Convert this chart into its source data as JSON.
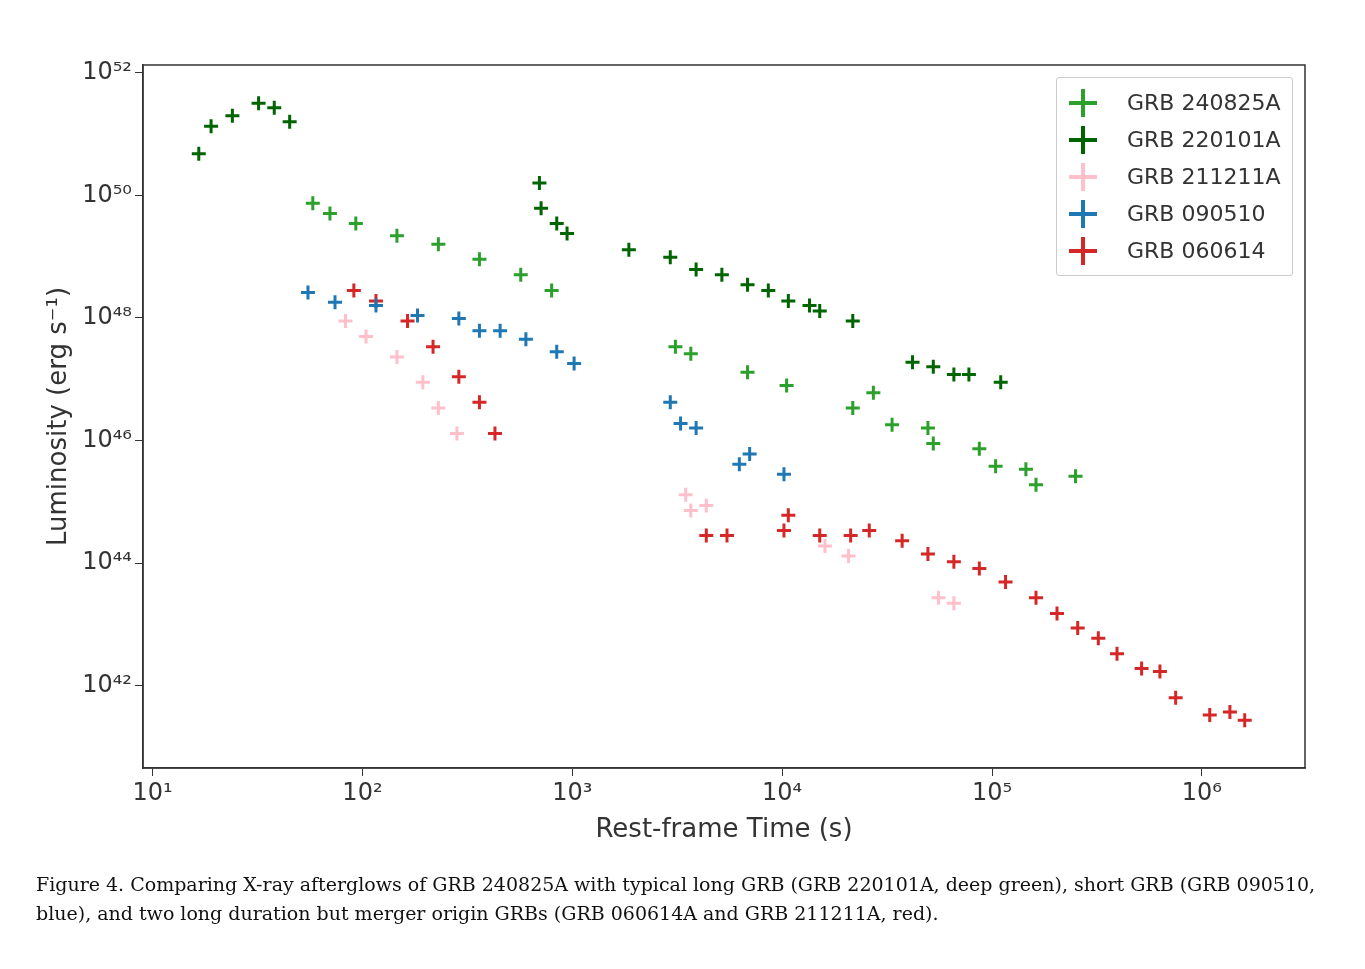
{
  "chart_data": {
    "type": "scatter",
    "xlabel": "Rest-frame Time (s)",
    "ylabel": "Luminosity (erg s⁻¹)",
    "log": "xy",
    "grid": false,
    "legend": "top right",
    "marker": "cross",
    "xlim": [
      9,
      3100000
    ],
    "ylim": [
      4.5e+40,
      1.35e+52
    ],
    "xticks": [
      {
        "value": 10,
        "label": "10¹"
      },
      {
        "value": 100,
        "label": "10²"
      },
      {
        "value": 1000,
        "label": "10³"
      },
      {
        "value": 10000,
        "label": "10⁴"
      },
      {
        "value": 100000,
        "label": "10⁵"
      },
      {
        "value": 1000000,
        "label": "10⁶"
      }
    ],
    "yticks": [
      {
        "value": 1e+42,
        "label": "10⁴²"
      },
      {
        "value": 1e+44,
        "label": "10⁴⁴"
      },
      {
        "value": 1e+46,
        "label": "10⁴⁶"
      },
      {
        "value": 1e+48,
        "label": "10⁴⁸"
      },
      {
        "value": 1e+50,
        "label": "10⁵⁰"
      },
      {
        "value": 1e+52,
        "label": "10⁵²"
      }
    ],
    "series": [
      {
        "name": "GRB 240825A",
        "color": "#2ca02c",
        "x": [
          58,
          70,
          93,
          146,
          230,
          361,
          568,
          797,
          3100,
          3670,
          6840,
          10500,
          21700,
          27200,
          33400,
          49500,
          52500,
          87000,
          104000,
          145000,
          162000,
          250000
        ],
        "values": [
          7.5e+49,
          5.1e+49,
          3.5e+49,
          2.2e+49,
          1.6e+49,
          9.1e+48,
          5.1e+48,
          2.8e+48,
          3.4e+47,
          2.6e+47,
          1.3e+47,
          7.9e+46,
          3.4e+46,
          6e+46,
          1.8e+46,
          1.6e+46,
          8.9e+45,
          7.3e+45,
          3.8e+45,
          3.4e+45,
          1.9e+45,
          2.6e+45
        ]
      },
      {
        "name": "GRB 220101A",
        "color": "#006400",
        "x": [
          16.6,
          19,
          24,
          32,
          38,
          45,
          697,
          710,
          843,
          944,
          1860,
          2930,
          3890,
          5160,
          6840,
          8590,
          10700,
          13500,
          15100,
          21700,
          41800,
          52500,
          65800,
          77600,
          110000
        ],
        "values": [
          4.8e+50,
          1.35e+51,
          2e+51,
          3.2e+51,
          2.7e+51,
          1.6e+51,
          1.6e+50,
          6.2e+49,
          3.5e+49,
          2.4e+49,
          1.3e+49,
          9.8e+48,
          6.2e+48,
          5.1e+48,
          3.5e+48,
          2.8e+48,
          1.9e+48,
          1.6e+48,
          1.3e+48,
          8.9e+47,
          1.9e+47,
          1.6e+47,
          1.2e+47,
          1.2e+47,
          8.9e+46
        ]
      },
      {
        "name": "GRB 211211A",
        "color": "#ffc0cb",
        "x": [
          83,
          104,
          146,
          194,
          230,
          282,
          3470,
          3670,
          4350,
          16000,
          20700,
          55600,
          65800
        ],
        "values": [
          8.9e+47,
          5e+47,
          2.3e+47,
          8.9e+46,
          3.4e+46,
          1.3e+46,
          1.3e+45,
          7.2e+44,
          8.7e+44,
          1.9e+44,
          1.3e+44,
          2.7e+43,
          2.2e+43
        ]
      },
      {
        "name": "GRB 090510",
        "color": "#1f77b4",
        "x": [
          55,
          74,
          116,
          183,
          288,
          361,
          453,
          601,
          843,
          1020,
          2930,
          3280,
          3890,
          6250,
          7000,
          10200
        ],
        "values": [
          2.6e+48,
          1.8e+48,
          1.6e+48,
          1.1e+48,
          9.8e+47,
          6.2e+47,
          6.2e+47,
          4.5e+47,
          2.8e+47,
          1.8e+47,
          4.2e+46,
          1.9e+46,
          1.6e+46,
          4.1e+45,
          6e+45,
          2.8e+45
        ]
      },
      {
        "name": "GRB 060614",
        "color": "#d62728",
        "x": [
          91,
          116,
          164,
          217,
          288,
          361,
          428,
          4350,
          5460,
          10200,
          10700,
          15100,
          21200,
          26000,
          37300,
          49500,
          65800,
          87000,
          116000,
          162000,
          204000,
          256000,
          321000,
          394000,
          516000,
          631000,
          750000,
          1090000,
          1360000,
          1600000
        ],
        "values": [
          2.8e+48,
          1.9e+48,
          8.9e+47,
          3.4e+47,
          1.1e+47,
          4.2e+46,
          1.3e+46,
          2.8e+44,
          2.8e+44,
          3.4e+44,
          6e+44,
          2.8e+44,
          2.8e+44,
          3.4e+44,
          2.3e+44,
          1.4e+44,
          1.05e+44,
          8.1e+43,
          4.9e+43,
          2.7e+43,
          1.5e+43,
          8.7e+42,
          5.9e+42,
          3.3e+42,
          1.9e+42,
          1.7e+42,
          6.3e+41,
          3.3e+41,
          3.7e+41,
          2.7e+41
        ]
      }
    ],
    "annotations": [
      "Figure 4. Comparing X-ray afterglows of GRB 240825A with typical long GRB (GRB 220101A, deep green), short GRB (GRB 090510, blue), and two long duration but merger origin GRBs (GRB 060614A and GRB 211211A, red)."
    ]
  }
}
